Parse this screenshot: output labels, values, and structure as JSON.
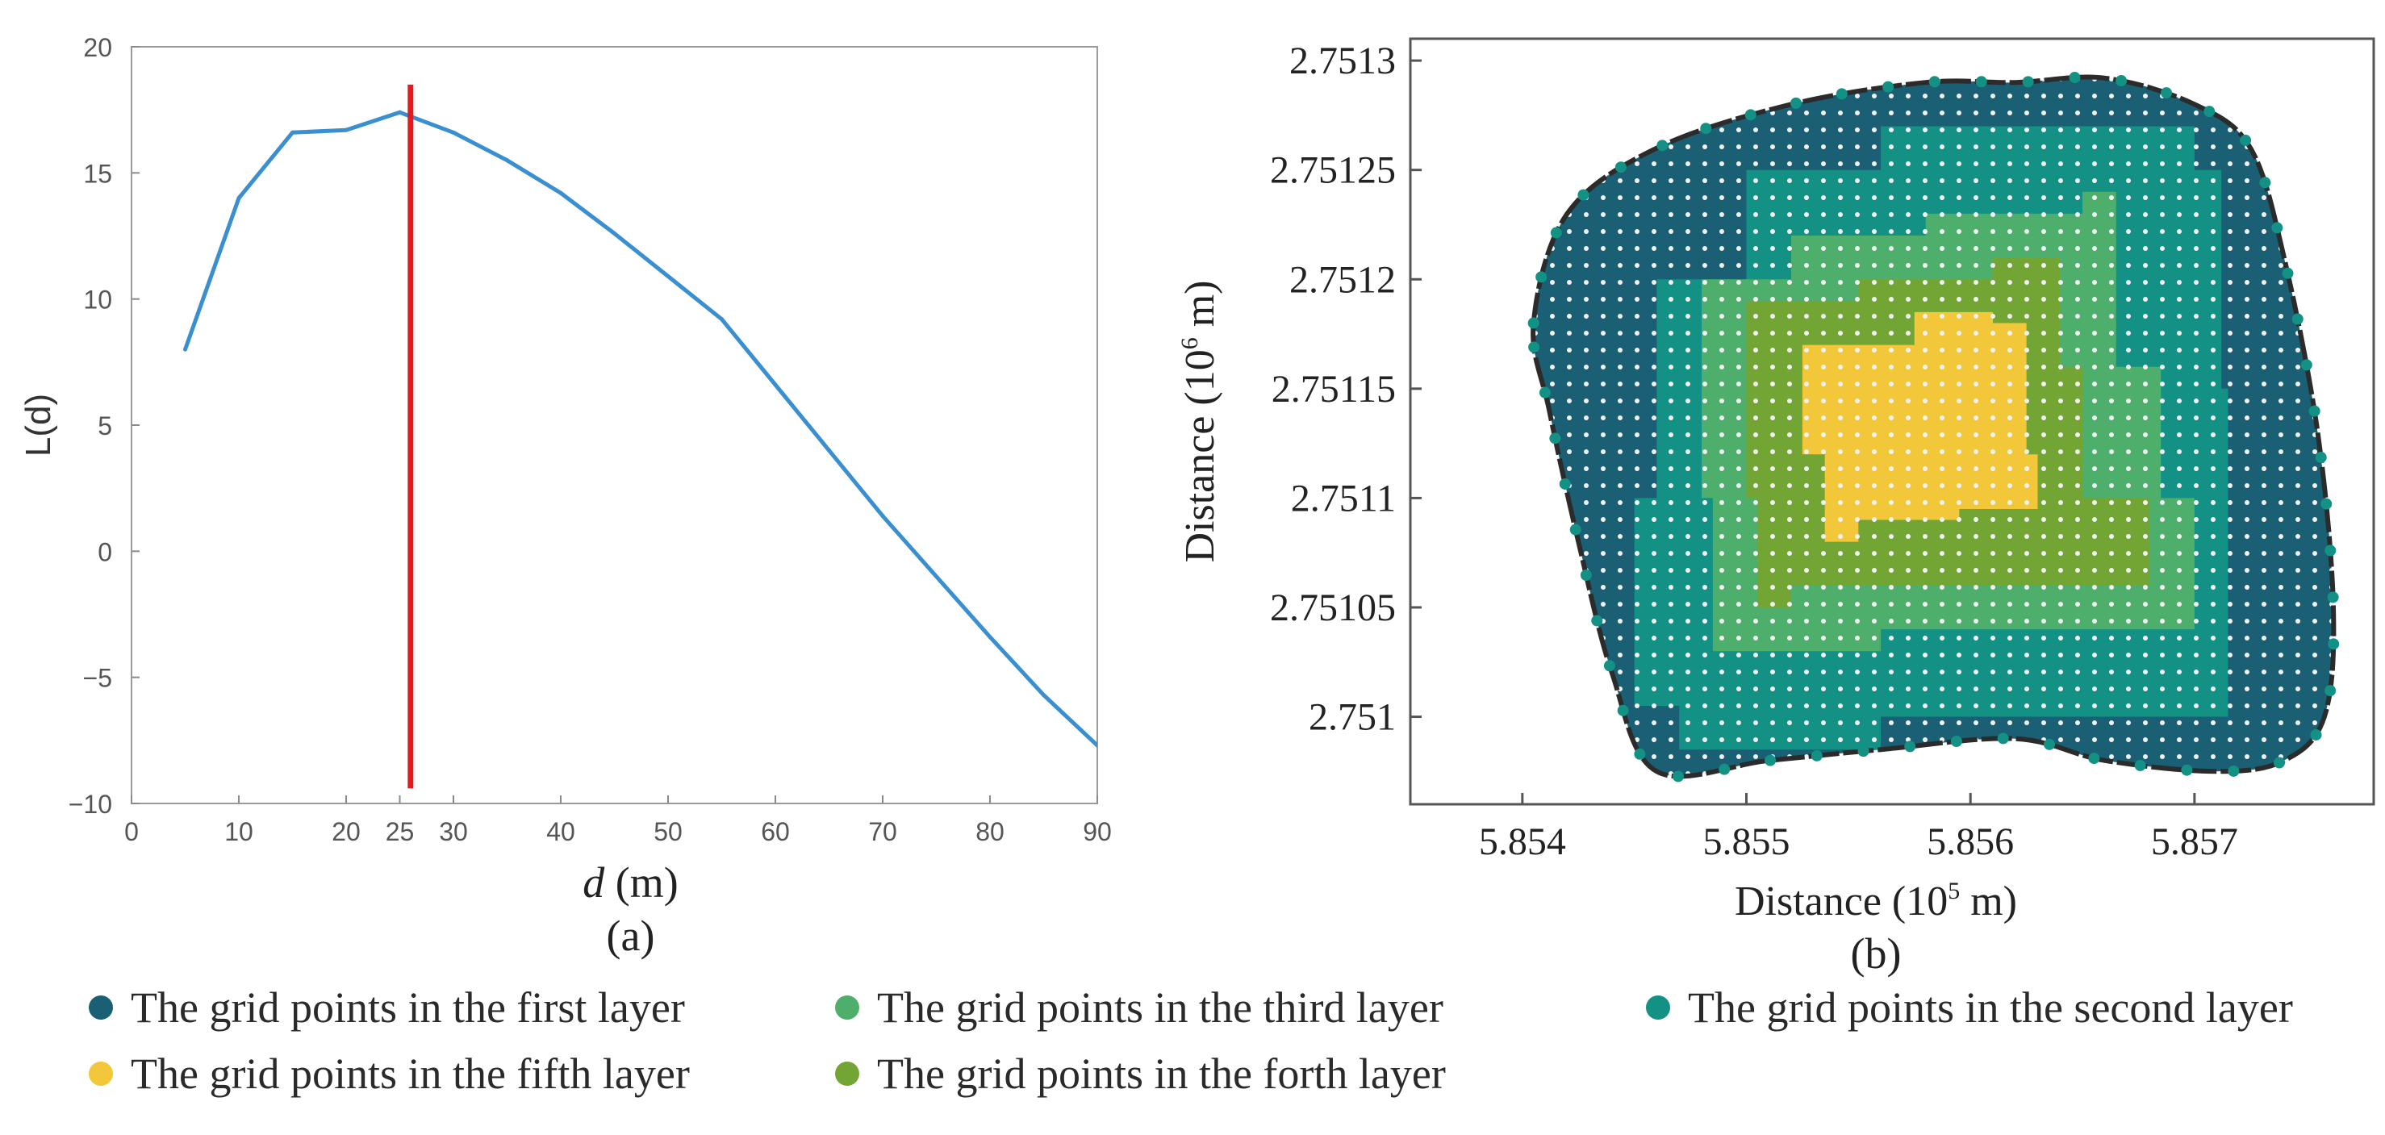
{
  "chart_data": [
    {
      "id": "a",
      "type": "line",
      "panel_label": "(a)",
      "ylabel": "L(d)",
      "xlabel_var": "d",
      "xlabel_unit": " (m)",
      "xlim": [
        0,
        90
      ],
      "ylim": [
        -10,
        20
      ],
      "xticks": [
        {
          "value": 0,
          "label": "0"
        },
        {
          "value": 10,
          "label": "10"
        },
        {
          "value": 20,
          "label": "20"
        },
        {
          "value": 25,
          "label": "25"
        },
        {
          "value": 30,
          "label": "30"
        },
        {
          "value": 40,
          "label": "40"
        },
        {
          "value": 50,
          "label": "50"
        },
        {
          "value": 60,
          "label": "60"
        },
        {
          "value": 70,
          "label": "70"
        },
        {
          "value": 80,
          "label": "80"
        },
        {
          "value": 90,
          "label": "90"
        }
      ],
      "yticks": [
        {
          "value": -10,
          "label": "−10"
        },
        {
          "value": -5,
          "label": "−5"
        },
        {
          "value": 0,
          "label": "0"
        },
        {
          "value": 5,
          "label": "5"
        },
        {
          "value": 10,
          "label": "10"
        },
        {
          "value": 15,
          "label": "15"
        },
        {
          "value": 20,
          "label": "20"
        }
      ],
      "series": [
        {
          "name": "L(d)",
          "color": "#3a8fd0",
          "x": [
            5,
            10,
            15,
            20,
            25,
            30,
            35,
            40,
            45,
            50,
            55,
            60,
            65,
            70,
            75,
            80,
            85,
            90
          ],
          "y": [
            8.0,
            14.0,
            16.6,
            16.7,
            17.4,
            16.6,
            15.5,
            14.2,
            12.6,
            10.9,
            9.2,
            6.6,
            4.0,
            1.4,
            -1.0,
            -3.4,
            -5.7,
            -7.7
          ]
        }
      ],
      "vline": {
        "x": 26,
        "y_from": -9.4,
        "y_to": 18.5,
        "color": "#e41a1c"
      }
    },
    {
      "id": "b",
      "type": "scatter",
      "panel_label": "(b)",
      "xlabel": "Distance (10",
      "xlabel_exp": "5",
      "xlabel_unit": " m)",
      "ylabel": "Distance (10",
      "ylabel_exp": "6",
      "ylabel_unit": " m)",
      "xlim": [
        5.8535,
        5.8578
      ],
      "ylim": [
        2.75096,
        2.75131
      ],
      "xticks": [
        {
          "value": 5.854,
          "label": "5.854"
        },
        {
          "value": 5.855,
          "label": "5.855"
        },
        {
          "value": 5.856,
          "label": "5.856"
        },
        {
          "value": 5.857,
          "label": "5.857"
        }
      ],
      "yticks": [
        {
          "value": 2.751,
          "label": "2.751"
        },
        {
          "value": 2.75105,
          "label": "2.75105"
        },
        {
          "value": 2.7511,
          "label": "2.7511"
        },
        {
          "value": 2.75115,
          "label": "2.75115"
        },
        {
          "value": 2.7512,
          "label": "2.7512"
        },
        {
          "value": 2.75125,
          "label": "2.75125"
        },
        {
          "value": 2.7513,
          "label": "2.7513"
        }
      ],
      "boundary_color": "#2b2b2b",
      "grid_point_color": "#f2f2f2",
      "boundary": [
        [
          5.85405,
          2.75118
        ],
        [
          5.8542,
          2.75123
        ],
        [
          5.8546,
          2.75126
        ],
        [
          5.8552,
          2.75128
        ],
        [
          5.8558,
          2.75129
        ],
        [
          5.8562,
          2.75129
        ],
        [
          5.8566,
          2.751292
        ],
        [
          5.857,
          2.75128
        ],
        [
          5.85725,
          2.75126
        ],
        [
          5.8574,
          2.75121
        ],
        [
          5.85755,
          2.75113
        ],
        [
          5.85762,
          2.75105
        ],
        [
          5.85758,
          2.751
        ],
        [
          5.8574,
          2.75098
        ],
        [
          5.8571,
          2.750975
        ],
        [
          5.8566,
          2.75098
        ],
        [
          5.8562,
          2.75099
        ],
        [
          5.8556,
          2.750985
        ],
        [
          5.8551,
          2.75098
        ],
        [
          5.8546,
          2.750975
        ],
        [
          5.8544,
          2.75102
        ],
        [
          5.85425,
          2.75108
        ],
        [
          5.85412,
          2.75114
        ]
      ],
      "layers": [
        {
          "name": "The grid points in the first layer",
          "color": "#1a5f73",
          "region": "whole",
          "poly": []
        },
        {
          "name": "The grid points in the second layer",
          "color": "#139184",
          "poly": [
            [
              5.8546,
              2.7512
            ],
            [
              5.855,
              2.75125
            ],
            [
              5.8556,
              2.75127
            ],
            [
              5.8564,
              2.75127
            ],
            [
              5.857,
              2.75125
            ],
            [
              5.85712,
              2.75115
            ],
            [
              5.85715,
              2.751
            ],
            [
              5.8556,
              2.750985
            ],
            [
              5.8547,
              2.751005
            ],
            [
              5.8545,
              2.7511
            ]
          ]
        },
        {
          "name": "The grid points in the third layer",
          "color": "#4daf6b",
          "poly": [
            [
              5.8548,
              2.7512
            ],
            [
              5.8552,
              2.75122
            ],
            [
              5.8558,
              2.75123
            ],
            [
              5.8565,
              2.75124
            ],
            [
              5.85665,
              2.75116
            ],
            [
              5.85685,
              2.7511
            ],
            [
              5.857,
              2.75104
            ],
            [
              5.8556,
              2.75103
            ],
            [
              5.855,
              2.75103
            ],
            [
              5.85485,
              2.7511
            ]
          ]
        },
        {
          "name": "The grid points in the forth layer",
          "color": "#73a535",
          "poly": [
            [
              5.855,
              2.75119
            ],
            [
              5.8555,
              2.7512
            ],
            [
              5.8561,
              2.75121
            ],
            [
              5.8564,
              2.75116
            ],
            [
              5.8565,
              2.7511
            ],
            [
              5.8568,
              2.75106
            ],
            [
              5.8559,
              2.75106
            ],
            [
              5.8552,
              2.75105
            ],
            [
              5.85505,
              2.7511
            ]
          ]
        },
        {
          "name": "The grid points in the fifth layer",
          "color": "#f2c83a",
          "poly": [
            [
              5.85525,
              2.75117
            ],
            [
              5.85575,
              2.751185
            ],
            [
              5.8561,
              2.75118
            ],
            [
              5.85625,
              2.75112
            ],
            [
              5.8563,
              2.751095
            ],
            [
              5.85595,
              2.75109
            ],
            [
              5.8555,
              2.75108
            ],
            [
              5.85535,
              2.75112
            ]
          ]
        }
      ]
    }
  ],
  "legend": [
    {
      "label": "The grid points in the first layer",
      "color": "#1a5f73"
    },
    {
      "label": "The grid points in the third layer",
      "color": "#4daf6b"
    },
    {
      "label": "The grid points in the second layer",
      "color": "#139184"
    },
    {
      "label": "The grid points in the fifth layer",
      "color": "#f2c83a"
    },
    {
      "label": "The grid points in the forth layer",
      "color": "#73a535"
    }
  ]
}
